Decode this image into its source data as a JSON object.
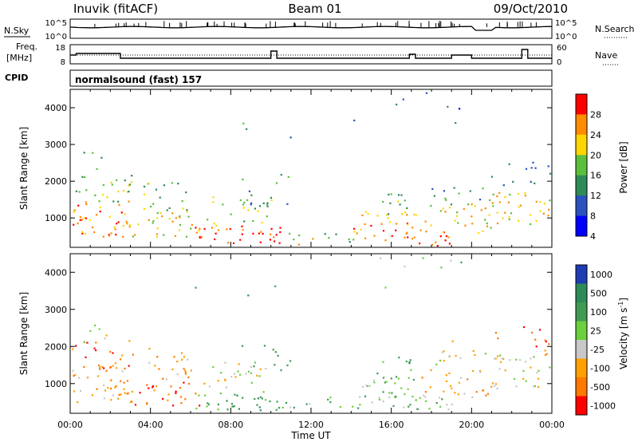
{
  "header": {
    "station": "Inuvik  (fitACF)",
    "beam": "Beam 01",
    "date": "09/Oct/2010"
  },
  "strip_panels": {
    "nsky": {
      "left_label": "N.Sky",
      "right_label": "N.Search",
      "left_ticks": [
        "10^5",
        "10^0"
      ],
      "right_ticks": [
        "10^5",
        "10^0"
      ]
    },
    "freq": {
      "left_label_top": "Freq.",
      "left_label_unit": "[MHz]",
      "right_label": "Nave",
      "left_ticks": [
        "18",
        "8"
      ],
      "right_ticks": [
        "60",
        "0"
      ]
    },
    "cpid": {
      "label": "CPID",
      "mode_text": "normalsound (fast) 157"
    }
  },
  "chart_data": [
    {
      "type": "heatmap",
      "panel": "power",
      "ylabel": "Slant Range [km]",
      "xlabel": "",
      "ylim": [
        200,
        4500
      ],
      "yticks": [
        1000,
        2000,
        3000,
        4000
      ],
      "xlim_hours": [
        0,
        24
      ],
      "colorbar": {
        "label": "Power [dB]",
        "ticks": [
          4,
          8,
          12,
          16,
          20,
          24,
          28
        ],
        "colors": [
          "#0000ff",
          "#2a52be",
          "#2e8b57",
          "#5cbf3c",
          "#ffd700",
          "#ff8c00",
          "#ff0000"
        ]
      }
    },
    {
      "type": "heatmap",
      "panel": "velocity",
      "ylabel": "Slant Range [km]",
      "xlabel": "Time UT",
      "ylim": [
        200,
        4500
      ],
      "yticks": [
        1000,
        2000,
        3000,
        4000
      ],
      "xticks": [
        "00:00",
        "04:00",
        "08:00",
        "12:00",
        "16:00",
        "20:00",
        "00:00"
      ],
      "xlim_hours": [
        0,
        24
      ],
      "colorbar": {
        "label_main": "Velocity [m s",
        "label_sup": "-1",
        "label_end": "]",
        "ticks": [
          "1000",
          "500",
          "100",
          "25",
          "-25",
          "-100",
          "-500",
          "-1000"
        ],
        "colors": [
          "#1e3cb4",
          "#2e8b57",
          "#3f9a52",
          "#6ccf3c",
          "#c8c8c8",
          "#ffa000",
          "#ff7800",
          "#ff0000"
        ]
      }
    }
  ]
}
